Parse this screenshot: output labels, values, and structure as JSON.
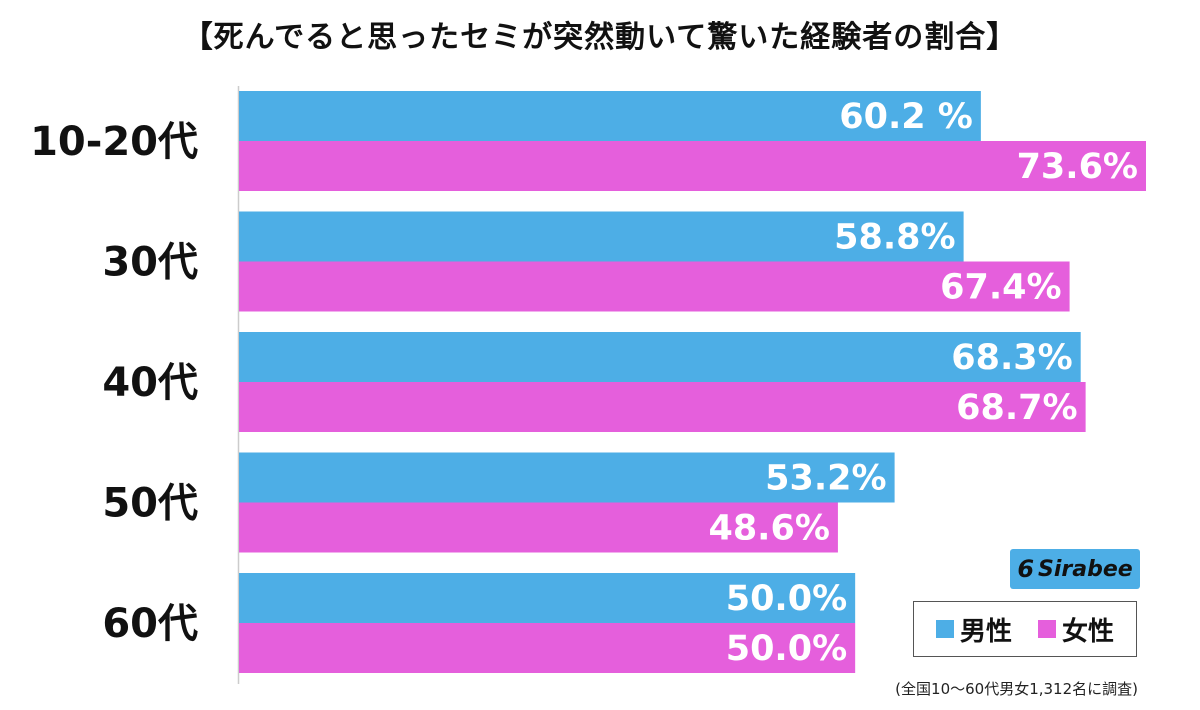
{
  "title": "【死んでると思ったセミが突然動いて驚いた経験者の割合】",
  "legend": {
    "male_label": "男性",
    "female_label": "女性"
  },
  "logo": {
    "mark": "6",
    "text": "Sirabee"
  },
  "footnote": "(全国10〜60代男女1,312名に調査)",
  "colors": {
    "male": "#4daee6",
    "female": "#e55fdc",
    "axis": "#cccccc"
  },
  "chart_data": {
    "type": "bar",
    "orientation": "horizontal",
    "categories": [
      "10-20代",
      "30代",
      "40代",
      "50代",
      "60代"
    ],
    "series": [
      {
        "name": "男性",
        "values": [
          60.2,
          58.8,
          68.3,
          53.2,
          50.0
        ],
        "labels": [
          "60.2 %",
          "58.8%",
          "68.3%",
          "53.2%",
          "50.0%"
        ]
      },
      {
        "name": "女性",
        "values": [
          73.6,
          67.4,
          68.7,
          48.6,
          50.0
        ],
        "labels": [
          "73.6%",
          "67.4%",
          "68.7%",
          "48.6%",
          "50.0%"
        ]
      }
    ],
    "xlim": [
      0,
      73.6
    ],
    "grid": false,
    "legend_position": "bottom-right"
  }
}
